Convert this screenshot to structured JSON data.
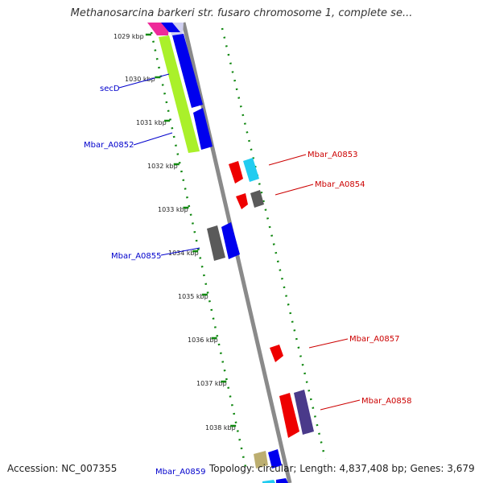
{
  "title": "Methanosarcina barkeri str. fusaro chromosome 1, complete se...",
  "footer": {
    "accession": "Accession: NC_007355",
    "summary": "Topology: circular; Length: 4,837,408 bp; Genes: 3,679"
  },
  "ticks": [
    "1029 kbp",
    "1030 kbp",
    "1031 kbp",
    "1032 kbp",
    "1033 kbp",
    "1034 kbp",
    "1035 kbp",
    "1036 kbp",
    "1037 kbp",
    "1038 kbp"
  ],
  "genes": [
    {
      "name": "secD",
      "color": "#0000cc"
    },
    {
      "name": "Mbar_A0852",
      "color": "#0000cc"
    },
    {
      "name": "Mbar_A0853",
      "color": "#cc0000"
    },
    {
      "name": "Mbar_A0854",
      "color": "#cc0000"
    },
    {
      "name": "Mbar_A0855",
      "color": "#0000cc"
    },
    {
      "name": "Mbar_A0857",
      "color": "#cc0000"
    },
    {
      "name": "Mbar_A0858",
      "color": "#cc0000"
    },
    {
      "name": "Mbar_A0859",
      "color": "#0000cc"
    }
  ],
  "colors": {
    "backbone": "#8a8a8a",
    "tick": "#118811",
    "gene_blue": "#0000ee",
    "gene_red": "#ee0000",
    "gene_lime": "#aaf02a",
    "gene_gray": "#5a5a5a",
    "gene_cyan": "#22ccf0",
    "gene_navy": "#4a3a8a",
    "gene_pink": "#ee2a9a",
    "gene_tan": "#bcae70"
  }
}
